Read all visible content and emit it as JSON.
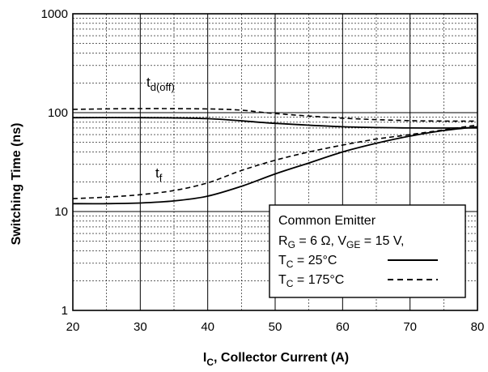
{
  "chart_data": {
    "type": "line",
    "xlabel_main": "I",
    "xlabel_sub": "C",
    "xlabel_rest": ", Collector Current (A)",
    "ylabel": "Switching Time (ns)",
    "xlim": [
      20,
      80
    ],
    "ylim": [
      1,
      1000
    ],
    "yscale": "log",
    "grid": true,
    "xticks": [
      "20",
      "30",
      "40",
      "50",
      "60",
      "70",
      "80"
    ],
    "yticks": [
      "1",
      "10",
      "100",
      "1000"
    ],
    "annotations": {
      "td_main": "t",
      "td_sub": "d(off)",
      "tf_main": "t",
      "tf_sub": "f"
    },
    "legend": {
      "position": "bottom-right",
      "line1": "Common Emitter",
      "line2_r": "R",
      "line2_g": "G",
      "line2_mid": " = 6 Ω, V",
      "line2_ge": "GE",
      "line2_end": " = 15 V,",
      "line3_t": "T",
      "line3_c": "C",
      "line3_end": " = 25°C",
      "line4_t": "T",
      "line4_c": "C",
      "line4_end": " = 175°C"
    },
    "series": [
      {
        "curve": "td(off)",
        "temp": "25°C",
        "style": "solid",
        "x": [
          20,
          30,
          40,
          50,
          60,
          70,
          80
        ],
        "y": [
          89,
          89,
          87,
          78,
          72,
          70,
          70
        ]
      },
      {
        "curve": "td(off)",
        "temp": "175°C",
        "style": "dashed",
        "x": [
          20,
          30,
          40,
          45,
          50,
          60,
          70,
          80
        ],
        "y": [
          108,
          110,
          109,
          106,
          98,
          88,
          83,
          82
        ]
      },
      {
        "curve": "tf",
        "temp": "25°C",
        "style": "solid",
        "x": [
          20,
          25,
          30,
          35,
          40,
          45,
          50,
          55,
          60,
          65,
          70,
          75,
          80
        ],
        "y": [
          12,
          12,
          12.2,
          12.8,
          14.3,
          18,
          24,
          31,
          40,
          49,
          58,
          66,
          72
        ]
      },
      {
        "curve": "tf",
        "temp": "175°C",
        "style": "dashed",
        "x": [
          20,
          25,
          30,
          35,
          40,
          45,
          50,
          55,
          60,
          65,
          70,
          75,
          80
        ],
        "y": [
          13.5,
          14,
          14.8,
          16.3,
          19.5,
          26,
          33,
          40,
          47,
          54,
          60,
          67,
          75
        ]
      }
    ]
  }
}
